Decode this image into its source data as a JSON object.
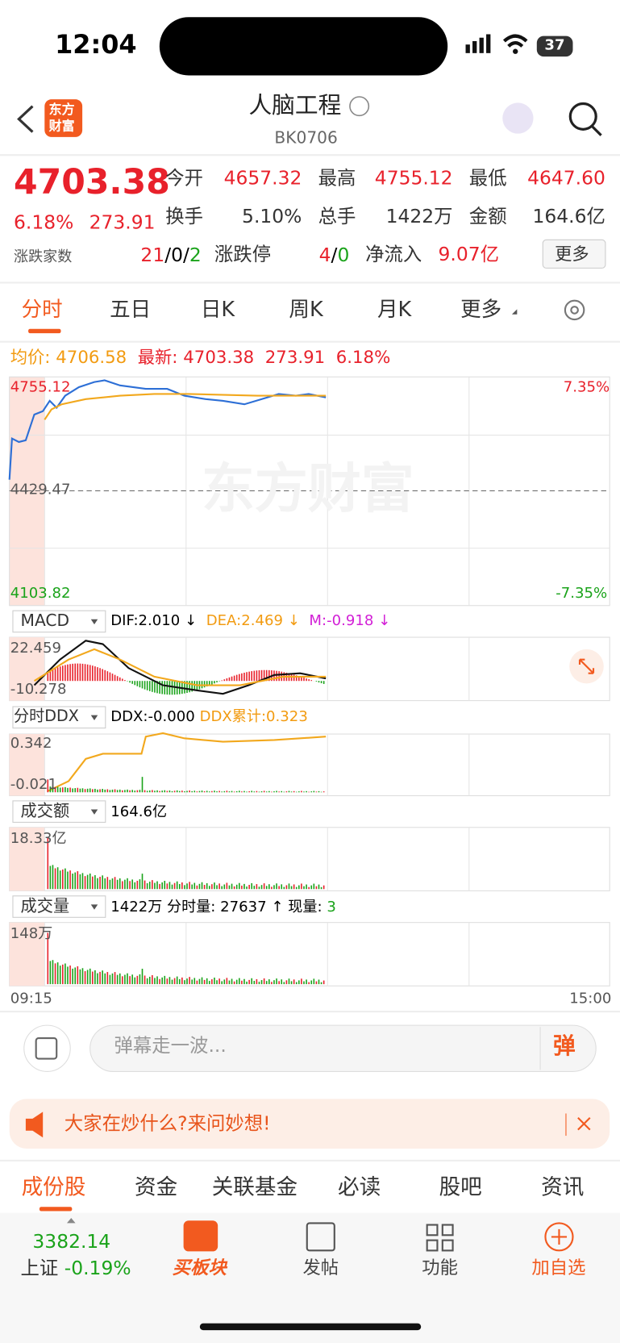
{
  "status": {
    "time": "12:04",
    "battery": "37"
  },
  "header": {
    "logo_top": "东方",
    "logo_bottom": "财富",
    "title": "人脑工程",
    "code": "BK0706"
  },
  "quote": {
    "price": "4703.38",
    "pct": "6.18%",
    "change": "273.91",
    "fields": [
      {
        "label": "今开",
        "value": "4657.32"
      },
      {
        "label": "最高",
        "value": "4755.12"
      },
      {
        "label": "最低",
        "value": "4647.60"
      },
      {
        "label": "换手",
        "value": "5.10%"
      },
      {
        "label": "总手",
        "value": "1422万"
      },
      {
        "label": "金额",
        "value": "164.6亿"
      }
    ],
    "breadth_label": "涨跌家数",
    "breadth": [
      "21",
      "0",
      "2"
    ],
    "limit_label": "涨跌停",
    "limit": [
      "4",
      "0"
    ],
    "inflow_label": "净流入",
    "inflow": "9.07亿",
    "more": "更多"
  },
  "tabs": [
    "分时",
    "五日",
    "日K",
    "周K",
    "月K",
    "更多"
  ],
  "info": {
    "avg_label": "均价:",
    "avg": "4706.58",
    "last_label": "最新:",
    "last": "4703.38",
    "change": "273.91",
    "pct": "6.18%"
  },
  "main_chart": {
    "high": "4755.12",
    "high_pct": "7.35%",
    "mid": "4429.47",
    "low": "4103.82",
    "low_pct": "-7.35%",
    "watermark": "东方财富"
  },
  "macd": {
    "name": "MACD",
    "dif": "DIF:2.010 ↓",
    "dea": "DEA:2.469 ↓",
    "m": "M:-0.918 ↓",
    "top": "22.459",
    "bottom": "-10.278"
  },
  "ddx": {
    "name": "分时DDX",
    "ddx": "DDX:-0.000",
    "cum": "DDX累计:0.323",
    "top": "0.342",
    "bottom": "-0.021"
  },
  "amount": {
    "name": "成交额",
    "value": "164.6亿",
    "top": "18.33亿"
  },
  "volume": {
    "name": "成交量",
    "value": "1422万",
    "period": "分时量: 27637 ↑",
    "now_label": "现量:",
    "now": "3",
    "top": "148万"
  },
  "time_axis": [
    "09:15",
    "15:00"
  ],
  "comment": {
    "placeholder": "弹幕走一波...",
    "button": "弹"
  },
  "banner": "大家在炒什么?来问妙想!",
  "bottom_tabs": [
    "成份股",
    "资金",
    "关联基金",
    "必读",
    "股吧",
    "资讯"
  ],
  "nav": {
    "index": "3382.14",
    "index_name": "上证",
    "index_pct": "-0.19%",
    "items": [
      "买板块",
      "发帖",
      "功能",
      "加自选"
    ]
  }
}
